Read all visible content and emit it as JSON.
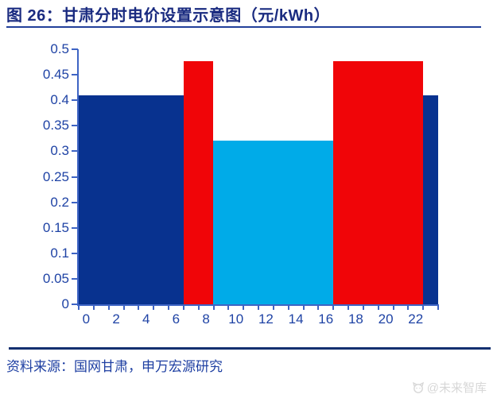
{
  "title": "图 26：甘肃分时电价设置示意图（元/kWh）",
  "source": "资料来源：国网甘肃，申万宏源研究",
  "watermark": "@未来智库",
  "colors": {
    "bar_navy": "#08328F",
    "bar_red": "#F00508",
    "bar_cyan": "#00ABE8",
    "axis": "#3E64C4",
    "axis_label": "#1F43A5",
    "title": "#1A2B80",
    "divider": "#133070",
    "watermark": "#D7D7D7"
  },
  "chart_data": {
    "type": "bar",
    "title": "甘肃分时电价设置示意图（元/kWh）",
    "xlabel": "",
    "ylabel": "",
    "ylim": [
      0,
      0.5
    ],
    "grid": false,
    "legend": false,
    "x": [
      0,
      1,
      2,
      3,
      4,
      5,
      6,
      7,
      8,
      9,
      10,
      11,
      12,
      13,
      14,
      15,
      16,
      17,
      18,
      19,
      20,
      21,
      22,
      23
    ],
    "values": [
      0.41,
      0.41,
      0.41,
      0.41,
      0.41,
      0.41,
      0.41,
      0.477,
      0.477,
      0.321,
      0.321,
      0.321,
      0.321,
      0.321,
      0.321,
      0.321,
      0.321,
      0.477,
      0.477,
      0.477,
      0.477,
      0.477,
      0.477,
      0.41
    ],
    "bar_colors": [
      "#08328F",
      "#08328F",
      "#08328F",
      "#08328F",
      "#08328F",
      "#08328F",
      "#08328F",
      "#F00508",
      "#F00508",
      "#00ABE8",
      "#00ABE8",
      "#00ABE8",
      "#00ABE8",
      "#00ABE8",
      "#00ABE8",
      "#00ABE8",
      "#00ABE8",
      "#F00508",
      "#F00508",
      "#F00508",
      "#F00508",
      "#F00508",
      "#F00508",
      "#08328F"
    ],
    "periods": [
      {
        "hours": "0-6",
        "price": 0.41,
        "color": "#08328F"
      },
      {
        "hours": "7-8",
        "price": 0.477,
        "color": "#F00508"
      },
      {
        "hours": "9-16",
        "price": 0.321,
        "color": "#00ABE8"
      },
      {
        "hours": "17-22",
        "price": 0.477,
        "color": "#F00508"
      },
      {
        "hours": "23",
        "price": 0.41,
        "color": "#08328F"
      }
    ],
    "ytick_labels": [
      "0",
      "0.05",
      "0.1",
      "0.15",
      "0.2",
      "0.25",
      "0.3",
      "0.35",
      "0.4",
      "0.45",
      "0.5"
    ],
    "xtick_labels": [
      "0",
      "2",
      "4",
      "6",
      "8",
      "10",
      "12",
      "14",
      "16",
      "18",
      "20",
      "22"
    ]
  }
}
